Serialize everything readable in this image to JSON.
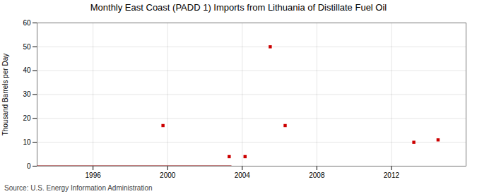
{
  "chart_data": {
    "type": "scatter",
    "title": "Monthly East Coast (PADD 1) Imports from Lithuania of Distillate Fuel Oil",
    "ylabel": "Thousand Barrels per Day",
    "caption": "Source: U.S. Energy Information Administration",
    "xlim": [
      1993.0,
      2016.0
    ],
    "xticks": [
      1996,
      2000,
      2004,
      2008,
      2012
    ],
    "ylim": [
      0,
      60
    ],
    "yticks": [
      0,
      10,
      20,
      30,
      40,
      50,
      60
    ],
    "grid": true,
    "series": [
      {
        "type": "line",
        "color": "#8B0000",
        "line_style": "solid",
        "x": [
          1993.0,
          2003.4
        ],
        "values": [
          0,
          0
        ]
      },
      {
        "type": "scatter",
        "color": "#cc0000",
        "marker": "square",
        "x": [
          1999.75,
          2003.3,
          2004.15,
          2005.5,
          2013.2,
          2014.5
        ],
        "values": [
          17,
          4,
          4,
          50,
          10,
          11
        ]
      },
      {
        "type": "scatter",
        "color": "#cc0000",
        "marker": "square",
        "x": [
          2006.3
        ],
        "values": [
          17
        ]
      }
    ]
  }
}
